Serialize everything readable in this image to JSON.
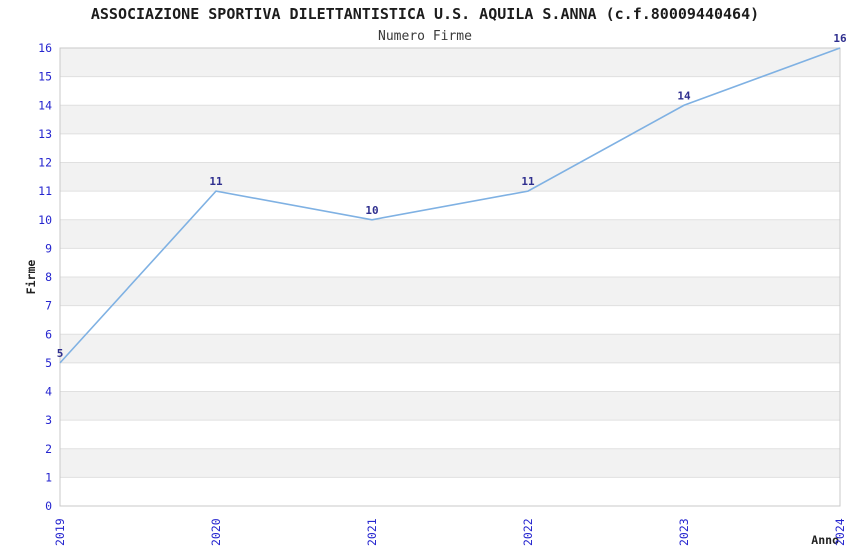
{
  "chart_data": {
    "type": "line",
    "title": "ASSOCIAZIONE SPORTIVA DILETTANTISTICA U.S. AQUILA S.ANNA (c.f.80009440464)",
    "subtitle": "Numero Firme",
    "xlabel": "Anno",
    "ylabel": "Firme",
    "x": [
      "2019",
      "2020",
      "2021",
      "2022",
      "2023",
      "2024"
    ],
    "series": [
      {
        "name": "Numero Firme",
        "values": [
          5,
          11,
          10,
          11,
          14,
          16
        ]
      }
    ],
    "point_labels": [
      "5",
      "11",
      "10",
      "11",
      "14",
      "16"
    ],
    "ylim": [
      0,
      16
    ],
    "ytick_step": 1,
    "grid": "horizontal-gridlines-with-alternating-bands",
    "legend": "none",
    "colors": {
      "line": "#7fb1e3",
      "tick_label": "#2525cf",
      "point_label": "#2f2f8f",
      "band": "#f2f2f2",
      "gridline": "#e0e0e0",
      "spine": "#c9c9c9",
      "title": "#1c1c1c",
      "subtitle": "#3a3a3a",
      "axis_label": "#222222",
      "background": "#ffffff"
    }
  }
}
